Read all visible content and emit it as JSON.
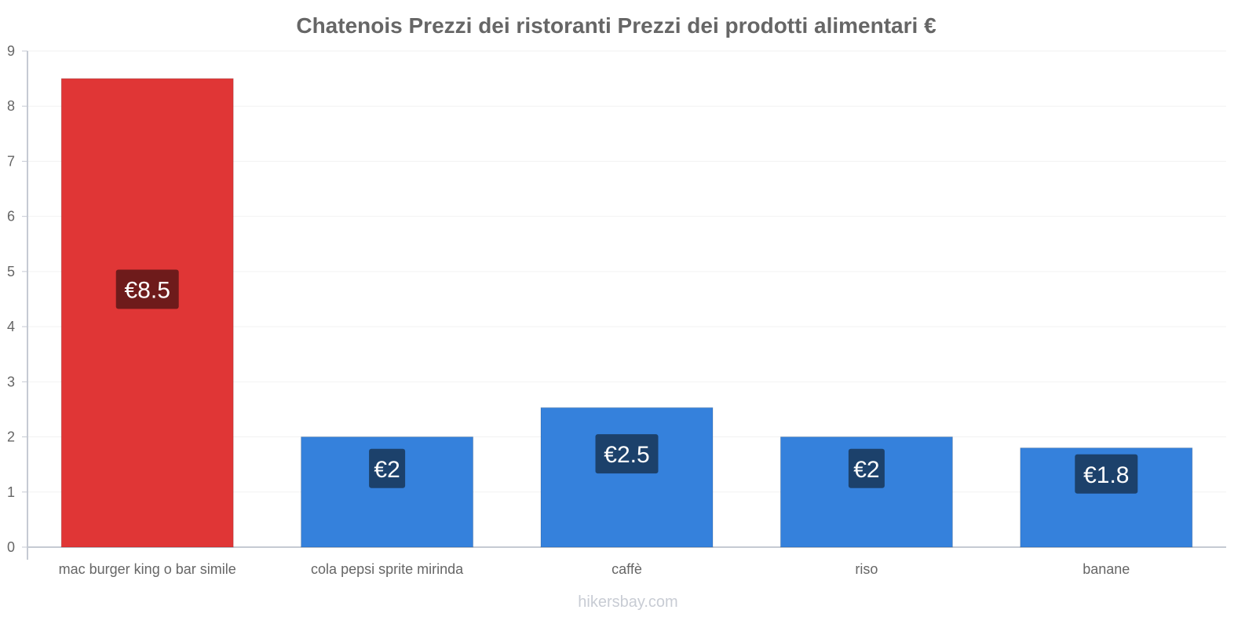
{
  "chart_data": {
    "type": "bar",
    "title": "Chatenois Prezzi dei ristoranti Prezzi dei prodotti alimentari €",
    "xlabel": "",
    "ylabel": "",
    "ylim": [
      0,
      9
    ],
    "yticks": [
      0,
      1,
      2,
      3,
      4,
      5,
      6,
      7,
      8,
      9
    ],
    "grid": true,
    "categories": [
      "mac burger king o bar simile",
      "cola pepsi sprite mirinda",
      "caffè",
      "riso",
      "banane"
    ],
    "values": [
      8.5,
      2,
      2.53,
      2,
      1.8
    ],
    "data_labels": [
      "€8.5",
      "€2",
      "€2.5",
      "€2",
      "€1.8"
    ],
    "colors": [
      "#e03636",
      "#3581dc",
      "#3581dc",
      "#3581dc",
      "#3581dc"
    ],
    "label_bg_colors": [
      "#6e1b1b",
      "#1c416b",
      "#1c416b",
      "#1c416b",
      "#1c416b"
    ]
  },
  "watermark": "hikersbay.com"
}
